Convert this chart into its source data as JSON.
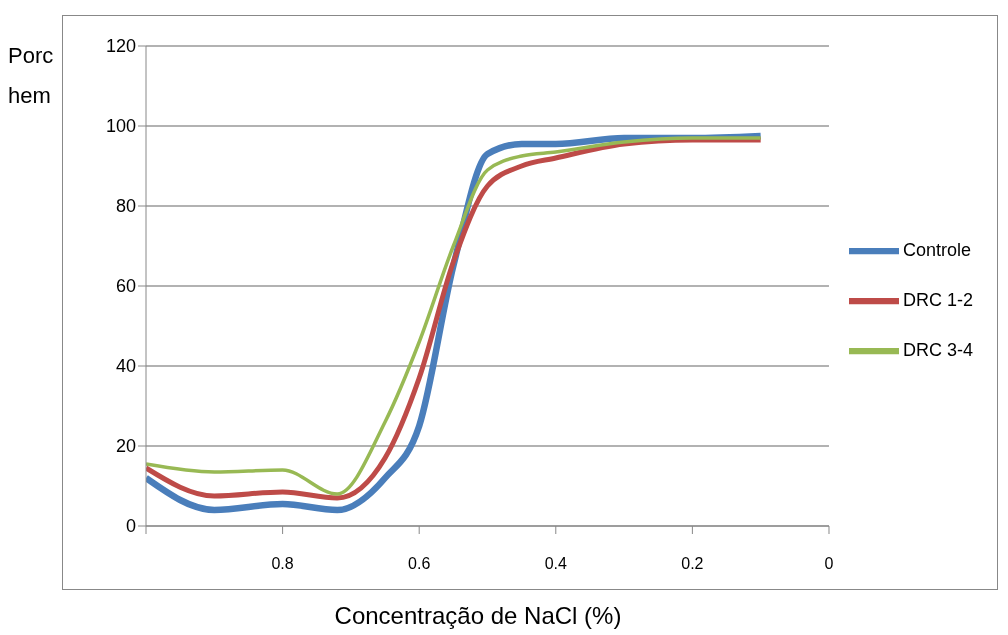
{
  "chart_data": {
    "type": "line",
    "xlabel": "Concentração de NaCl (%)",
    "ylabel": "Porc hem",
    "x": [
      1.0,
      0.9,
      0.8,
      0.72,
      0.65,
      0.6,
      0.55,
      0.5,
      0.45,
      0.4,
      0.3,
      0.2,
      0.1
    ],
    "series": [
      {
        "name": "Controle",
        "color": "#4a7ebb",
        "values": [
          12,
          4,
          5.5,
          4,
          12,
          25,
          65,
          93,
          95.5,
          95.5,
          97,
          97,
          97.5
        ]
      },
      {
        "name": "DRC 1-2",
        "color": "#be4b48",
        "values": [
          14.5,
          7.5,
          8.5,
          7,
          17,
          37,
          66,
          85,
          90,
          92,
          95.5,
          96.5,
          96.5
        ]
      },
      {
        "name": "DRC 3-4",
        "color": "#98b954",
        "values": [
          15.5,
          13.5,
          14,
          8,
          26,
          46,
          70,
          89,
          92.5,
          93.5,
          96,
          97,
          97
        ]
      }
    ],
    "xlim": [
      1,
      0
    ],
    "xticks": [
      {
        "value": 1,
        "label": null
      },
      0.8,
      0.6,
      0.4,
      0.2,
      0
    ],
    "ylim": [
      0,
      120
    ],
    "yticks": [
      0,
      20,
      40,
      60,
      80,
      100,
      120
    ],
    "grid": "y",
    "legend": "right",
    "marker": "none",
    "line_style": "solid"
  }
}
